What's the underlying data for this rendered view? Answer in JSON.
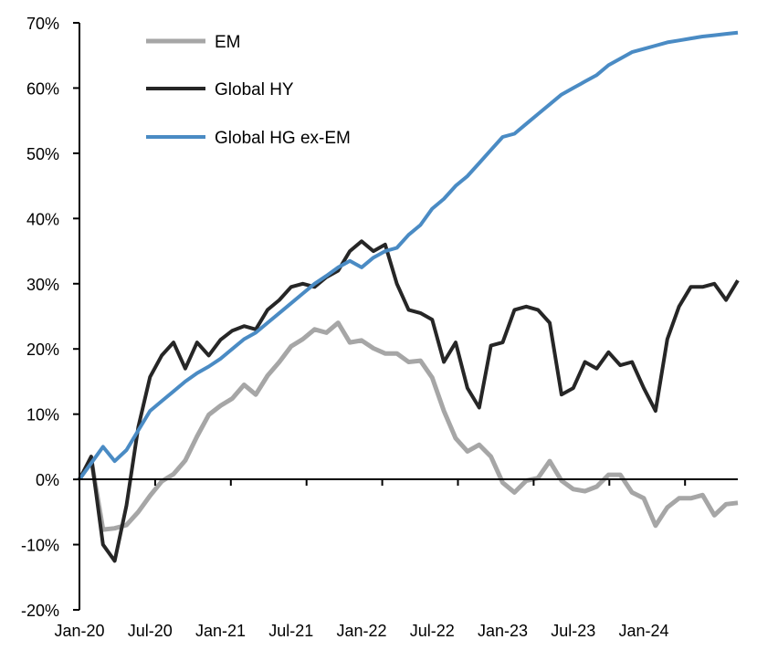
{
  "chart_data": {
    "type": "line",
    "title": "",
    "xlabel": "",
    "ylabel": "",
    "ylim": [
      -20,
      70
    ],
    "y_ticks": [
      "70%",
      "60%",
      "50%",
      "40%",
      "30%",
      "20%",
      "10%",
      "0%",
      "-10%",
      "-20%"
    ],
    "y_tick_values": [
      70,
      60,
      50,
      40,
      30,
      20,
      10,
      0,
      -10,
      -20
    ],
    "x_tick_labels": [
      "Jan-20",
      "Jul-20",
      "Jan-21",
      "Jul-21",
      "Jan-22",
      "Jul-22",
      "Jan-23",
      "Jul-23",
      "Jan-24"
    ],
    "x_range": [
      "2020-01",
      "2024-08"
    ],
    "grid": false,
    "legend_placement": "top-left",
    "x": [
      "2020-01",
      "2020-02",
      "2020-03",
      "2020-04",
      "2020-05",
      "2020-06",
      "2020-07",
      "2020-08",
      "2020-09",
      "2020-10",
      "2020-11",
      "2020-12",
      "2021-01",
      "2021-02",
      "2021-03",
      "2021-04",
      "2021-05",
      "2021-06",
      "2021-07",
      "2021-08",
      "2021-09",
      "2021-10",
      "2021-11",
      "2021-12",
      "2022-01",
      "2022-02",
      "2022-03",
      "2022-04",
      "2022-05",
      "2022-06",
      "2022-07",
      "2022-08",
      "2022-09",
      "2022-10",
      "2022-11",
      "2022-12",
      "2023-01",
      "2023-02",
      "2023-03",
      "2023-04",
      "2023-05",
      "2023-06",
      "2023-07",
      "2023-08",
      "2023-09",
      "2023-10",
      "2023-11",
      "2023-12",
      "2024-01",
      "2024-02",
      "2024-03",
      "2024-04",
      "2024-05",
      "2024-06",
      "2024-07",
      "2024-08",
      "2024-08"
    ],
    "series": [
      {
        "name": "EM",
        "color": "#a6a6a6",
        "values": [
          0,
          3,
          -7.7,
          -7.5,
          -7,
          -5,
          -2.5,
          -0.3,
          0.8,
          2.9,
          6.6,
          9.9,
          11.3,
          12.4,
          14.5,
          13,
          15.9,
          18,
          20.4,
          21.5,
          23,
          22.5,
          24,
          21,
          21.3,
          20.1,
          19.3,
          19.3,
          18,
          18.2,
          15.6,
          10.5,
          6.3,
          4.3,
          5.3,
          3.5,
          -0.5,
          -2,
          -0.2,
          0.2,
          2.8,
          -0.2,
          -1.5,
          -1.8,
          -1.1,
          0.7,
          0.7,
          -2,
          -2.9,
          -7.1,
          -4.3,
          -2.9,
          -2.9,
          -2.4,
          -5.5,
          -3.8,
          -3.6
        ]
      },
      {
        "name": "Global HY",
        "color": "#262626",
        "values": [
          0,
          3.5,
          -10,
          -12.5,
          -4,
          8,
          15.7,
          19,
          21,
          17,
          21,
          19,
          21.4,
          22.8,
          23.5,
          23,
          26,
          27.5,
          29.5,
          30,
          29.5,
          31,
          32,
          35,
          36.5,
          35,
          36,
          30,
          26,
          25.5,
          24.5,
          18,
          21,
          14,
          11,
          20.5,
          21,
          26,
          26.5,
          26,
          24,
          13,
          14,
          18,
          17,
          19.5,
          17.5,
          18,
          14,
          10.5,
          21.5,
          26.5,
          29.5,
          29.5,
          30,
          27.5,
          30.5
        ]
      },
      {
        "name": "Global HG ex-EM",
        "color": "#4a8bc4",
        "values": [
          0,
          2.5,
          5,
          2.8,
          4.5,
          7.5,
          10.5,
          12,
          13.5,
          15,
          16.3,
          17.3,
          18.5,
          20,
          21.5,
          22.5,
          24,
          25.5,
          27,
          28.5,
          30,
          31.2,
          32.5,
          33.5,
          32.5,
          34,
          35,
          35.5,
          37.5,
          39,
          41.5,
          43,
          45,
          46.5,
          48.5,
          50.5,
          52.5,
          53,
          54.5,
          56,
          57.5,
          59,
          60,
          61,
          62,
          63.5,
          64.5,
          65.5,
          66,
          66.5,
          67,
          67.3,
          67.6,
          67.9,
          68.1,
          68.3,
          68.5
        ]
      }
    ]
  }
}
